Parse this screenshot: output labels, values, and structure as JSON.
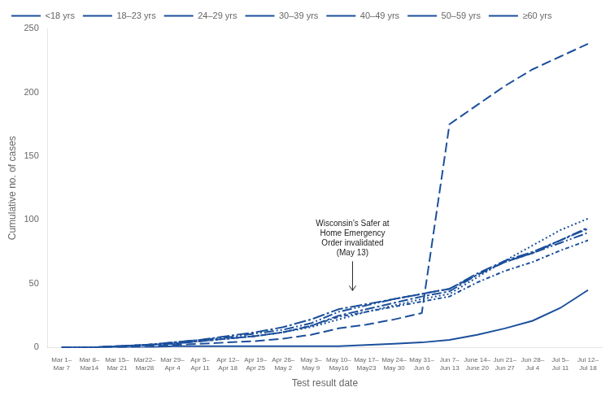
{
  "chart_data": {
    "type": "line",
    "xlabel": "Test result date",
    "ylabel": "Cumulative no. of cases",
    "color": "#1B4F9C",
    "ylim": [
      0,
      250
    ],
    "yticks": [
      0,
      50,
      100,
      150,
      200,
      250
    ],
    "grid": false,
    "legend": "upper left",
    "categories": [
      "Mar 1–\nMar 7",
      "Mar 8–\nMar14",
      "Mar 15–\nMar 21",
      "Mar22–\nMar28",
      "Mar 29–\nApr 4",
      "Apr 5–\nApr 11",
      "Apr 12–\nApr 18",
      "Apr 19–\nApr 25",
      "Apr 26–\nMay 2",
      "May 3–\nMay 9",
      "May 10–\nMay16",
      "May 17–\nMay23",
      "May 24–\nMay 30",
      "May 31–\nJun 6",
      "Jun 7–\nJun 13",
      "June 14–\nJune 20",
      "Jun 21–\nJun 27",
      "Jun 28–\nJul 4",
      "Jul 5–\nJul 11",
      "Jul 12–\nJul 18"
    ],
    "annotations": [
      {
        "text": "Wisconsin’s Safer at\nHome Emergency\nOrder invalidated\n(May 13)",
        "x": 10.5,
        "y": 44
      }
    ],
    "series": [
      {
        "name": "<18 yrs",
        "line_style": "solid",
        "values": [
          0,
          0,
          0,
          0,
          1,
          1,
          1,
          1,
          1,
          1,
          1,
          2,
          3,
          4,
          6,
          10,
          15,
          21,
          31,
          45
        ]
      },
      {
        "name": "18–23 yrs",
        "line_style": "longdash",
        "values": [
          0,
          0,
          0,
          1,
          2,
          3,
          4,
          5,
          7,
          10,
          15,
          18,
          22,
          27,
          175,
          190,
          205,
          218,
          228,
          238
        ]
      },
      {
        "name": "24–29 yrs",
        "line_style": "dotted",
        "values": [
          0,
          0,
          1,
          2,
          3,
          5,
          7,
          9,
          12,
          16,
          22,
          28,
          33,
          38,
          42,
          55,
          68,
          80,
          92,
          101
        ]
      },
      {
        "name": "30–39 yrs",
        "line_style": "dashdotlong",
        "values": [
          0,
          0,
          1,
          2,
          3,
          5,
          7,
          9,
          12,
          17,
          25,
          30,
          35,
          40,
          44,
          57,
          67,
          74,
          84,
          94
        ]
      },
      {
        "name": "40–49 yrs",
        "line_style": "dashdotshort",
        "values": [
          0,
          0,
          1,
          2,
          3,
          5,
          7,
          9,
          12,
          17,
          24,
          28,
          32,
          36,
          40,
          51,
          60,
          67,
          76,
          84
        ]
      },
      {
        "name": "50–59 yrs",
        "line_style": "dashdotdot",
        "values": [
          0,
          0,
          1,
          2,
          4,
          6,
          8,
          11,
          14,
          19,
          28,
          33,
          38,
          42,
          46,
          57,
          67,
          74,
          82,
          90
        ]
      },
      {
        "name": "≥60 yrs",
        "line_style": "dashlongdot",
        "values": [
          0,
          0,
          1,
          2,
          4,
          6,
          9,
          12,
          16,
          22,
          30,
          34,
          38,
          42,
          46,
          58,
          68,
          75,
          84,
          93
        ]
      }
    ]
  }
}
